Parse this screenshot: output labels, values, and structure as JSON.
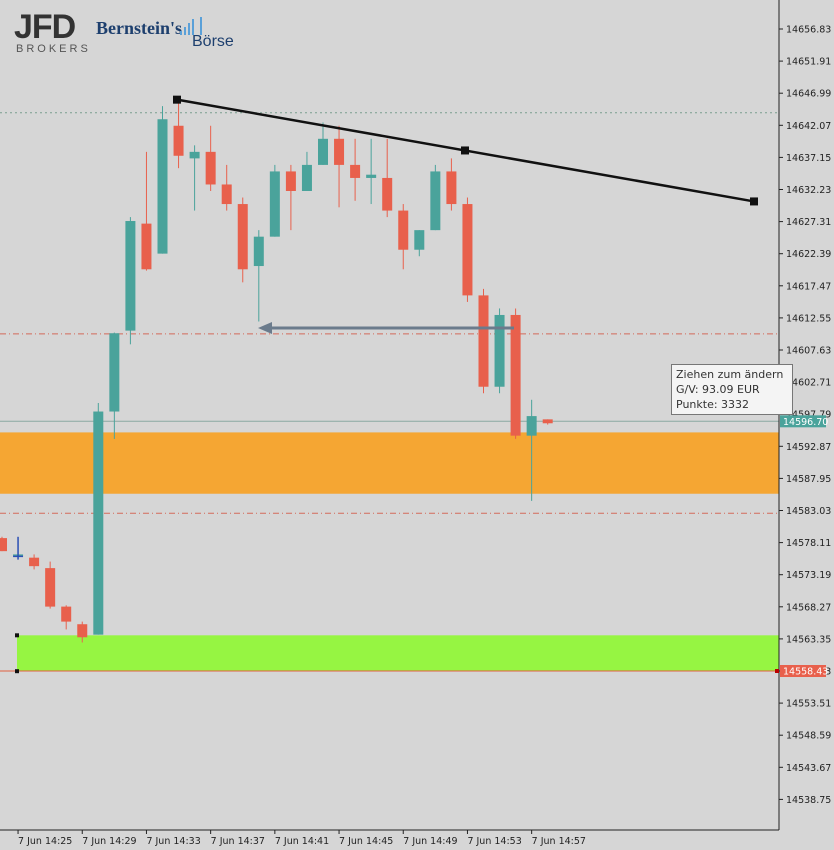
{
  "logos": {
    "broker_name": "JFD",
    "broker_sub": "BROKERS",
    "partner_name": "Bernstein's",
    "partner_sub": "Börse"
  },
  "tooltip": {
    "line1": "Ziehen zum ändern",
    "line2": "G/V: 93.09 EUR",
    "line3": "Punkte: 3332"
  },
  "colors": {
    "background": "#d6d6d6",
    "bull": "#4aa39b",
    "bear": "#e8604c",
    "orange_zone": "#f5a633",
    "green_zone": "#96f542",
    "trendline": "#111111",
    "arrow": "#6b7b8c",
    "current_price_label": "#4aa39b",
    "alert_price_label": "#e8604c"
  },
  "chart_data": {
    "type": "candlestick",
    "y_ticks": [
      "14656.83",
      "14651.91",
      "14646.99",
      "14642.07",
      "14637.15",
      "14632.23",
      "14627.31",
      "14622.39",
      "14617.47",
      "14612.55",
      "14607.63",
      "14602.71",
      "14597.79",
      "14592.87",
      "14587.95",
      "14583.03",
      "14578.11",
      "14573.19",
      "14568.27",
      "14563.35",
      "14558.43",
      "14553.51",
      "14548.59",
      "14543.67",
      "14538.75"
    ],
    "x_ticks": [
      "7 Jun 14:25",
      "7 Jun 14:29",
      "7 Jun 14:33",
      "7 Jun 14:37",
      "7 Jun 14:41",
      "7 Jun 14:45",
      "7 Jun 14:49",
      "7 Jun 14:53",
      "7 Jun 14:57"
    ],
    "x_tick_index": [
      1,
      5,
      9,
      13,
      17,
      21,
      25,
      29,
      33
    ],
    "ylim": [
      14533.0,
      14662.0
    ],
    "current_price": "14596.70",
    "alert_price": "14558.43",
    "candles": [
      {
        "i": 0,
        "o": 14578.8,
        "h": 14579.0,
        "l": 14576.8,
        "c": 14576.8
      },
      {
        "i": 1,
        "o": 14576.3,
        "h": 14578.6,
        "l": 14575.6,
        "c": 14576.3
      },
      {
        "i": 2,
        "o": 14575.8,
        "h": 14576.3,
        "l": 14574.0,
        "c": 14574.5
      },
      {
        "i": 3,
        "o": 14574.2,
        "h": 14575.2,
        "l": 14568.0,
        "c": 14568.3
      },
      {
        "i": 4,
        "o": 14568.3,
        "h": 14568.5,
        "l": 14564.8,
        "c": 14566.0
      },
      {
        "i": 5,
        "o": 14565.6,
        "h": 14566.0,
        "l": 14562.8,
        "c": 14563.6
      },
      {
        "i": 6,
        "o": 14564.0,
        "h": 14599.5,
        "l": 14564.0,
        "c": 14598.2
      },
      {
        "i": 7,
        "o": 14598.2,
        "h": 14610.3,
        "l": 14594.0,
        "c": 14610.2
      },
      {
        "i": 8,
        "o": 14610.6,
        "h": 14628.0,
        "l": 14608.5,
        "c": 14627.4
      },
      {
        "i": 9,
        "o": 14627.0,
        "h": 14638.0,
        "l": 14619.8,
        "c": 14620.0
      },
      {
        "i": 10,
        "o": 14622.4,
        "h": 14645.0,
        "l": 14622.4,
        "c": 14643.0
      },
      {
        "i": 11,
        "o": 14642.0,
        "h": 14646.0,
        "l": 14635.5,
        "c": 14637.4
      },
      {
        "i": 12,
        "o": 14637.0,
        "h": 14639.0,
        "l": 14629.0,
        "c": 14638.0
      },
      {
        "i": 13,
        "o": 14638.0,
        "h": 14642.0,
        "l": 14632.0,
        "c": 14633.0
      },
      {
        "i": 14,
        "o": 14633.0,
        "h": 14636.0,
        "l": 14629.0,
        "c": 14630.0
      },
      {
        "i": 15,
        "o": 14630.0,
        "h": 14631.0,
        "l": 14618.0,
        "c": 14620.0
      },
      {
        "i": 16,
        "o": 14620.5,
        "h": 14626.0,
        "l": 14612.0,
        "c": 14625.0
      },
      {
        "i": 17,
        "o": 14625.0,
        "h": 14636.0,
        "l": 14625.0,
        "c": 14635.0
      },
      {
        "i": 18,
        "o": 14635.0,
        "h": 14636.0,
        "l": 14626.0,
        "c": 14632.0
      },
      {
        "i": 19,
        "o": 14632.0,
        "h": 14638.0,
        "l": 14632.0,
        "c": 14636.0
      },
      {
        "i": 20,
        "o": 14636.0,
        "h": 14642.5,
        "l": 14636.0,
        "c": 14640.0
      },
      {
        "i": 21,
        "o": 14640.0,
        "h": 14642.0,
        "l": 14629.5,
        "c": 14636.0
      },
      {
        "i": 22,
        "o": 14636.0,
        "h": 14640.0,
        "l": 14630.5,
        "c": 14634.0
      },
      {
        "i": 23,
        "o": 14634.0,
        "h": 14640.0,
        "l": 14630.0,
        "c": 14634.5
      },
      {
        "i": 24,
        "o": 14634.0,
        "h": 14640.0,
        "l": 14628.0,
        "c": 14629.0
      },
      {
        "i": 25,
        "o": 14629.0,
        "h": 14630.0,
        "l": 14620.0,
        "c": 14623.0
      },
      {
        "i": 26,
        "o": 14623.0,
        "h": 14626.0,
        "l": 14622.0,
        "c": 14626.0
      },
      {
        "i": 27,
        "o": 14626.0,
        "h": 14636.0,
        "l": 14626.0,
        "c": 14635.0
      },
      {
        "i": 28,
        "o": 14635.0,
        "h": 14637.0,
        "l": 14629.0,
        "c": 14630.0
      },
      {
        "i": 29,
        "o": 14630.0,
        "h": 14631.0,
        "l": 14615.0,
        "c": 14616.0
      },
      {
        "i": 30,
        "o": 14616.0,
        "h": 14617.0,
        "l": 14601.0,
        "c": 14602.0
      },
      {
        "i": 31,
        "o": 14602.0,
        "h": 14614.0,
        "l": 14601.0,
        "c": 14613.0
      },
      {
        "i": 32,
        "o": 14613.0,
        "h": 14614.0,
        "l": 14594.0,
        "c": 14594.5
      },
      {
        "i": 33,
        "o": 14594.5,
        "h": 14600.0,
        "l": 14584.5,
        "c": 14597.5
      },
      {
        "i": 34,
        "o": 14597.0,
        "h": 14597.0,
        "l": 14596.2,
        "c": 14596.4
      }
    ]
  }
}
